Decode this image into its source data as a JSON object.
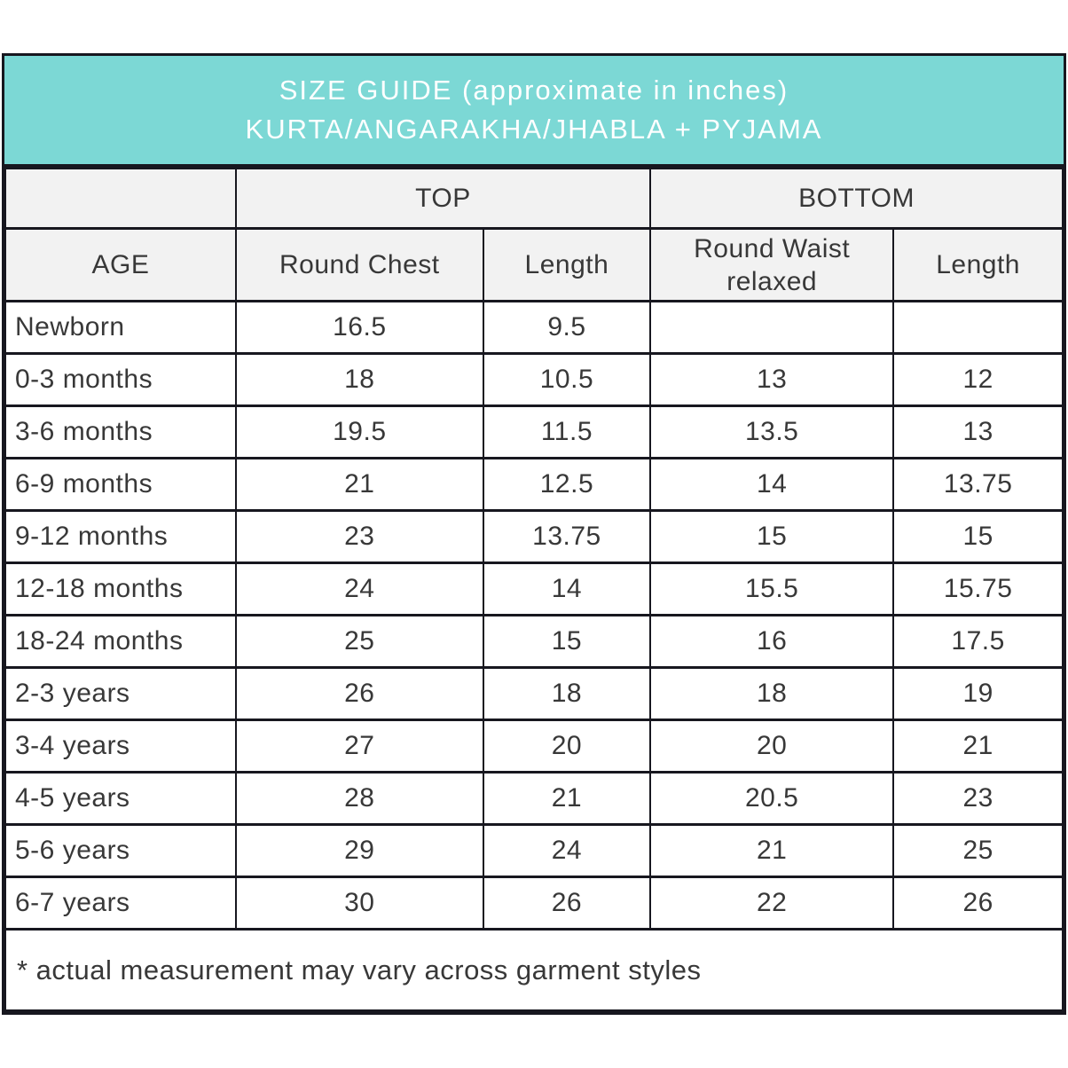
{
  "colors": {
    "banner-bg": "#7cd8d5",
    "banner-text": "#ffffff",
    "header-bg": "#f2f2f2",
    "border": "#17171f",
    "text": "#383838",
    "page-bg": "#ffffff"
  },
  "banner": {
    "line1": "SIZE GUIDE (approximate in inches)",
    "line2": "KURTA/ANGARAKHA/JHABLA + PYJAMA"
  },
  "table": {
    "group_headers": {
      "top": "TOP",
      "bottom": "BOTTOM"
    },
    "column_headers": {
      "age": "AGE",
      "round_chest": "Round Chest",
      "top_length": "Length",
      "round_waist": "Round Waist relaxed",
      "bottom_length": "Length"
    },
    "rows": [
      {
        "age": "Newborn",
        "round_chest": "16.5",
        "top_length": "9.5",
        "round_waist": "",
        "bottom_length": ""
      },
      {
        "age": "0-3 months",
        "round_chest": "18",
        "top_length": "10.5",
        "round_waist": "13",
        "bottom_length": "12"
      },
      {
        "age": "3-6 months",
        "round_chest": "19.5",
        "top_length": "11.5",
        "round_waist": "13.5",
        "bottom_length": "13"
      },
      {
        "age": "6-9 months",
        "round_chest": "21",
        "top_length": "12.5",
        "round_waist": "14",
        "bottom_length": "13.75"
      },
      {
        "age": "9-12 months",
        "round_chest": "23",
        "top_length": "13.75",
        "round_waist": "15",
        "bottom_length": "15"
      },
      {
        "age": "12-18 months",
        "round_chest": "24",
        "top_length": "14",
        "round_waist": "15.5",
        "bottom_length": "15.75"
      },
      {
        "age": "18-24 months",
        "round_chest": "25",
        "top_length": "15",
        "round_waist": "16",
        "bottom_length": "17.5"
      },
      {
        "age": "2-3 years",
        "round_chest": "26",
        "top_length": "18",
        "round_waist": "18",
        "bottom_length": "19"
      },
      {
        "age": "3-4 years",
        "round_chest": "27",
        "top_length": "20",
        "round_waist": "20",
        "bottom_length": "21"
      },
      {
        "age": "4-5 years",
        "round_chest": "28",
        "top_length": "21",
        "round_waist": "20.5",
        "bottom_length": "23"
      },
      {
        "age": "5-6 years",
        "round_chest": "29",
        "top_length": "24",
        "round_waist": "21",
        "bottom_length": "25"
      },
      {
        "age": "6-7 years",
        "round_chest": "30",
        "top_length": "26",
        "round_waist": "22",
        "bottom_length": "26"
      }
    ],
    "footnote": "* actual measurement may vary across garment styles"
  }
}
